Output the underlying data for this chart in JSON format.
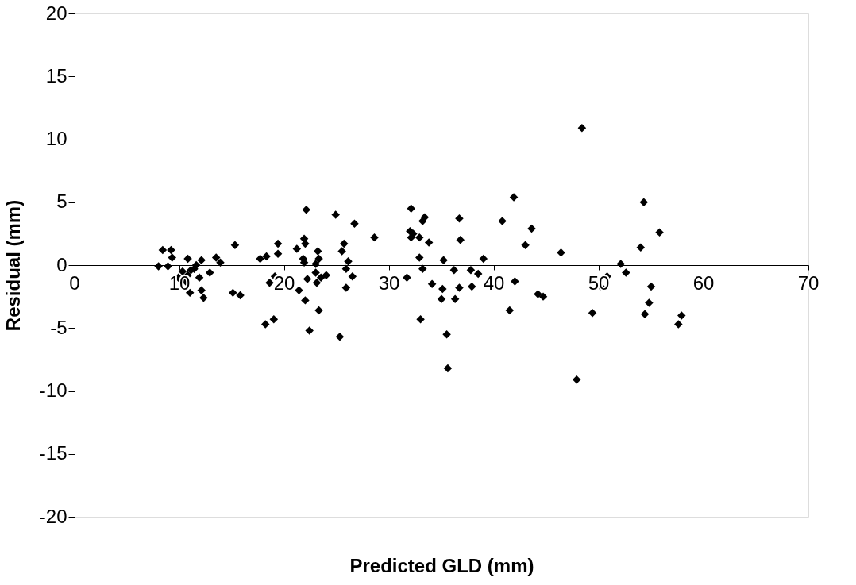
{
  "chart_data": {
    "type": "scatter",
    "xlabel": "Predicted GLD (mm)",
    "ylabel": "Residual (mm)",
    "xlim": [
      0,
      70
    ],
    "xticks": [
      0,
      10,
      20,
      30,
      40,
      50,
      60,
      70
    ],
    "ylim": [
      -20,
      20
    ],
    "yticks": [
      -20,
      -15,
      -10,
      -5,
      0,
      5,
      10,
      15,
      20
    ],
    "grid": false,
    "marker": "diamond",
    "series": [
      {
        "color": "#000000",
        "x": [
          8.4,
          9.2,
          8.0,
          8.9,
          9.3,
          9.9,
          10.3,
          10.8,
          10.6,
          11.0,
          11.4,
          12.1,
          11.9,
          12.3,
          12.1,
          12.9,
          13.5,
          13.9,
          15.3,
          15.1,
          15.8,
          17.7,
          11.1,
          10.8,
          11.6,
          18.3,
          19.4,
          19.4,
          22.1,
          21.2,
          21.9,
          22.0,
          21.8,
          21.9,
          23.2,
          23.3,
          23.0,
          23.0,
          23.1,
          23.5,
          24.0,
          22.2,
          19.1,
          18.6,
          21.4,
          22.0,
          23.3,
          18.2,
          19.0,
          22.4,
          25.3,
          24.9,
          26.7,
          25.7,
          25.5,
          26.1,
          25.9,
          26.5,
          25.9,
          28.6,
          32.1,
          33.4,
          33.2,
          32.0,
          32.3,
          32.9,
          33.8,
          32.1,
          32.9,
          33.2,
          31.7,
          34.1,
          33.0,
          35.2,
          36.7,
          36.8,
          36.2,
          37.8,
          38.5,
          39.0,
          35.1,
          35.0,
          36.7,
          36.3,
          37.9,
          35.5,
          35.6,
          41.9,
          40.8,
          43.6,
          43.0,
          46.4,
          42.0,
          44.2,
          44.7,
          41.5,
          49.4,
          50.2,
          50.8,
          52.1,
          52.6,
          48.4,
          54.3,
          55.8,
          54.0,
          55.0,
          54.8,
          54.4,
          57.9,
          57.6,
          47.9
        ],
        "values": [
          1.2,
          1.2,
          -0.1,
          -0.1,
          0.6,
          -1.0,
          -0.5,
          0.5,
          -1.3,
          -2.2,
          -0.3,
          0.4,
          -1.0,
          -2.6,
          -2.0,
          -0.6,
          0.6,
          0.2,
          1.6,
          -2.2,
          -2.4,
          0.5,
          -0.4,
          -0.8,
          0.0,
          0.7,
          1.7,
          0.9,
          4.4,
          1.3,
          2.1,
          1.7,
          0.5,
          0.2,
          1.1,
          0.5,
          0.1,
          -0.6,
          -1.4,
          -1.0,
          -0.8,
          -1.1,
          -0.9,
          -1.4,
          -2.0,
          -2.8,
          -3.6,
          -4.7,
          -4.3,
          -5.2,
          -5.7,
          4.0,
          3.3,
          1.7,
          1.1,
          0.3,
          -0.3,
          -0.9,
          -1.8,
          2.2,
          4.5,
          3.8,
          3.5,
          2.7,
          2.5,
          2.2,
          1.8,
          2.2,
          0.6,
          -0.3,
          -1.0,
          -1.5,
          -4.3,
          0.4,
          3.7,
          2.0,
          -0.4,
          -0.4,
          -0.7,
          0.5,
          -1.9,
          -2.7,
          -1.8,
          -2.7,
          -1.7,
          -5.5,
          -8.2,
          5.4,
          3.5,
          2.9,
          1.6,
          1.0,
          -1.3,
          -2.3,
          -2.5,
          -3.6,
          -3.8,
          -1.7,
          -0.9,
          0.1,
          -0.6,
          10.9,
          5.0,
          2.6,
          1.4,
          -1.7,
          -3.0,
          -3.9,
          -4.0,
          -4.7,
          -9.1
        ]
      }
    ]
  }
}
